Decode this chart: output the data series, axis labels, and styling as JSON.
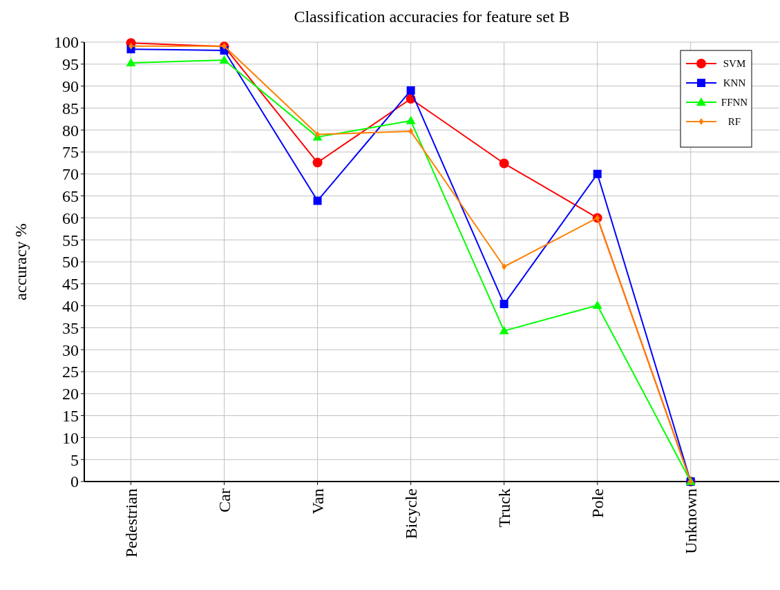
{
  "chart_data": {
    "type": "line",
    "title": "Classification accuracies for feature set B",
    "ylabel": "accuracy %",
    "categories": [
      "Pedestrian",
      "Car",
      "Van",
      "Bicycle",
      "Truck",
      "Pole",
      "Unknown"
    ],
    "series": [
      {
        "name": "SVM",
        "color": "#ff0000",
        "marker": "circle",
        "values": [
          99.8,
          99.0,
          72.6,
          87.1,
          72.4,
          60,
          0
        ]
      },
      {
        "name": "KNN",
        "color": "#0000ff",
        "marker": "square",
        "values": [
          98.4,
          98.1,
          63.9,
          89.0,
          40.4,
          70.0,
          0
        ]
      },
      {
        "name": "FFNN",
        "color": "#00ff00",
        "marker": "triangle",
        "values": [
          95.3,
          95.9,
          78.4,
          82.1,
          34.3,
          40.1,
          0
        ]
      },
      {
        "name": "RF",
        "color": "#ff8000",
        "marker": "diamond",
        "values": [
          99.1,
          99.1,
          79.0,
          79.7,
          48.9,
          60,
          0
        ]
      }
    ],
    "ylim": [
      0,
      100
    ],
    "yticks": [
      0,
      5,
      10,
      15,
      20,
      25,
      30,
      35,
      40,
      45,
      50,
      55,
      60,
      65,
      70,
      75,
      80,
      85,
      90,
      95,
      100
    ],
    "grid": true,
    "legend": "top right"
  }
}
